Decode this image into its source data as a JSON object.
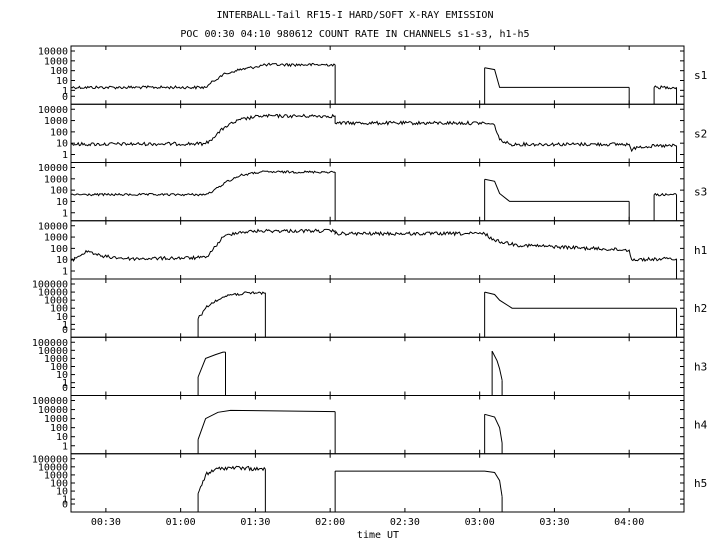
{
  "title_line1": "INTERBALL-Tail RF15-I HARD/SOFT X-RAY EMISSION",
  "title_line2": "POC 00:30 04:10 980612  COUNT RATE IN CHANNELS s1-s3, h1-h5",
  "chart_data": {
    "type": "line",
    "xlabel": "time UT",
    "x_ticks": [
      "00:30",
      "01:00",
      "01:30",
      "02:00",
      "02:30",
      "03:00",
      "03:30",
      "04:00"
    ],
    "x_tick_minutes": [
      30,
      60,
      90,
      120,
      150,
      180,
      210,
      240
    ],
    "xlim_minutes": [
      16,
      262
    ],
    "yscale": "log",
    "panels": [
      {
        "name": "s1",
        "y_ticks": [
          "10000",
          "1000",
          "100",
          "10",
          "1",
          "0"
        ],
        "segments": [
          {
            "noise": 0.15,
            "points": [
              [
                16,
                2
              ],
              [
                70,
                2
              ],
              [
                72,
                5
              ],
              [
                76,
                30
              ],
              [
                82,
                100
              ],
              [
                90,
                250
              ],
              [
                94,
                400
              ],
              [
                122,
                400
              ]
            ]
          },
          {
            "points": [
              [
                182,
                200
              ],
              [
                186,
                130
              ],
              [
                188,
                2
              ],
              [
                240,
                2
              ]
            ]
          },
          {
            "noise": 0.15,
            "points": [
              [
                250,
                2
              ],
              [
                259,
                2
              ]
            ]
          }
        ]
      },
      {
        "name": "s2",
        "y_ticks": [
          "10000",
          "1000",
          "100",
          "10",
          "1"
        ],
        "segments": [
          {
            "noise": 0.15,
            "points": [
              [
                16,
                8
              ],
              [
                70,
                9
              ],
              [
                73,
                30
              ],
              [
                78,
                300
              ],
              [
                84,
                1200
              ],
              [
                92,
                2500
              ],
              [
                122,
                2500
              ],
              [
                122,
                600
              ],
              [
                182,
                600
              ],
              [
                186,
                400
              ],
              [
                188,
                20
              ],
              [
                192,
                8
              ],
              [
                240,
                8
              ],
              [
                241,
                2
              ],
              [
                243,
                5
              ],
              [
                259,
                6
              ]
            ]
          }
        ]
      },
      {
        "name": "s3",
        "y_ticks": [
          "10000",
          "1000",
          "100",
          "10",
          "1"
        ],
        "segments": [
          {
            "noise": 0.1,
            "points": [
              [
                16,
                40
              ],
              [
                70,
                40
              ],
              [
                73,
                80
              ],
              [
                78,
                500
              ],
              [
                84,
                2000
              ],
              [
                92,
                4000
              ],
              [
                122,
                4000
              ]
            ]
          },
          {
            "points": [
              [
                182,
                900
              ],
              [
                186,
                600
              ],
              [
                188,
                50
              ],
              [
                192,
                10
              ],
              [
                240,
                10
              ]
            ]
          },
          {
            "noise": 0.1,
            "points": [
              [
                250,
                40
              ],
              [
                259,
                40
              ]
            ]
          }
        ]
      },
      {
        "name": "h1",
        "y_ticks": [
          "10000",
          "1000",
          "100",
          "10",
          "1"
        ],
        "segments": [
          {
            "noise": 0.15,
            "points": [
              [
                16,
                8
              ],
              [
                19,
                20
              ],
              [
                23,
                60
              ],
              [
                28,
                20
              ],
              [
                40,
                12
              ],
              [
                70,
                15
              ],
              [
                73,
                80
              ],
              [
                77,
                1000
              ],
              [
                82,
                2500
              ],
              [
                92,
                3500
              ],
              [
                122,
                3500
              ],
              [
                122,
                2000
              ],
              [
                182,
                2000
              ],
              [
                186,
                500
              ],
              [
                195,
                200
              ],
              [
                220,
                110
              ],
              [
                240,
                70
              ],
              [
                241,
                10
              ],
              [
                259,
                12
              ]
            ]
          }
        ]
      },
      {
        "name": "h2",
        "y_ticks": [
          "100000",
          "10000",
          "1000",
          "100",
          "10",
          "1",
          "0"
        ],
        "segments": [
          {
            "noise": 0.2,
            "points": [
              [
                67,
                5
              ],
              [
                70,
                100
              ],
              [
                74,
                1000
              ],
              [
                80,
                5000
              ],
              [
                90,
                8000
              ],
              [
                94,
                8000
              ]
            ]
          },
          {
            "points": [
              [
                182,
                10000
              ],
              [
                186,
                5000
              ],
              [
                188,
                1000
              ],
              [
                193,
                100
              ],
              [
                240,
                100
              ],
              [
                259,
                100
              ]
            ]
          }
        ]
      },
      {
        "name": "h3",
        "y_ticks": [
          "100000",
          "10000",
          "1000",
          "100",
          "10",
          "1",
          "0"
        ],
        "segments": [
          {
            "points": [
              [
                67,
                5
              ],
              [
                70,
                1000
              ],
              [
                74,
                3000
              ],
              [
                77,
                6000
              ],
              [
                78,
                6000
              ]
            ]
          },
          {
            "points": [
              [
                185,
                8000
              ],
              [
                187,
                500
              ],
              [
                188,
                50
              ],
              [
                189,
                2
              ]
            ]
          }
        ]
      },
      {
        "name": "h4",
        "y_ticks": [
          "100000",
          "10000",
          "1000",
          "100",
          "10",
          "1"
        ],
        "segments": [
          {
            "points": [
              [
                67,
                5
              ],
              [
                70,
                1000
              ],
              [
                75,
                5000
              ],
              [
                80,
                8000
              ],
              [
                122,
                6000
              ]
            ]
          },
          {
            "points": [
              [
                182,
                3000
              ],
              [
                186,
                1500
              ],
              [
                188,
                100
              ],
              [
                189,
                2
              ]
            ]
          }
        ]
      },
      {
        "name": "h5",
        "y_ticks": [
          "100000",
          "10000",
          "1000",
          "100",
          "10",
          "1",
          "0"
        ],
        "segments": [
          {
            "noise": 0.25,
            "points": [
              [
                67,
                5
              ],
              [
                70,
                1000
              ],
              [
                75,
                6000
              ],
              [
                80,
                8000
              ],
              [
                94,
                5000
              ]
            ]
          },
          {
            "points": [
              [
                122,
                3000
              ],
              [
                182,
                3000
              ],
              [
                186,
                2000
              ],
              [
                188,
                200
              ],
              [
                189,
                2
              ]
            ]
          }
        ]
      }
    ]
  }
}
